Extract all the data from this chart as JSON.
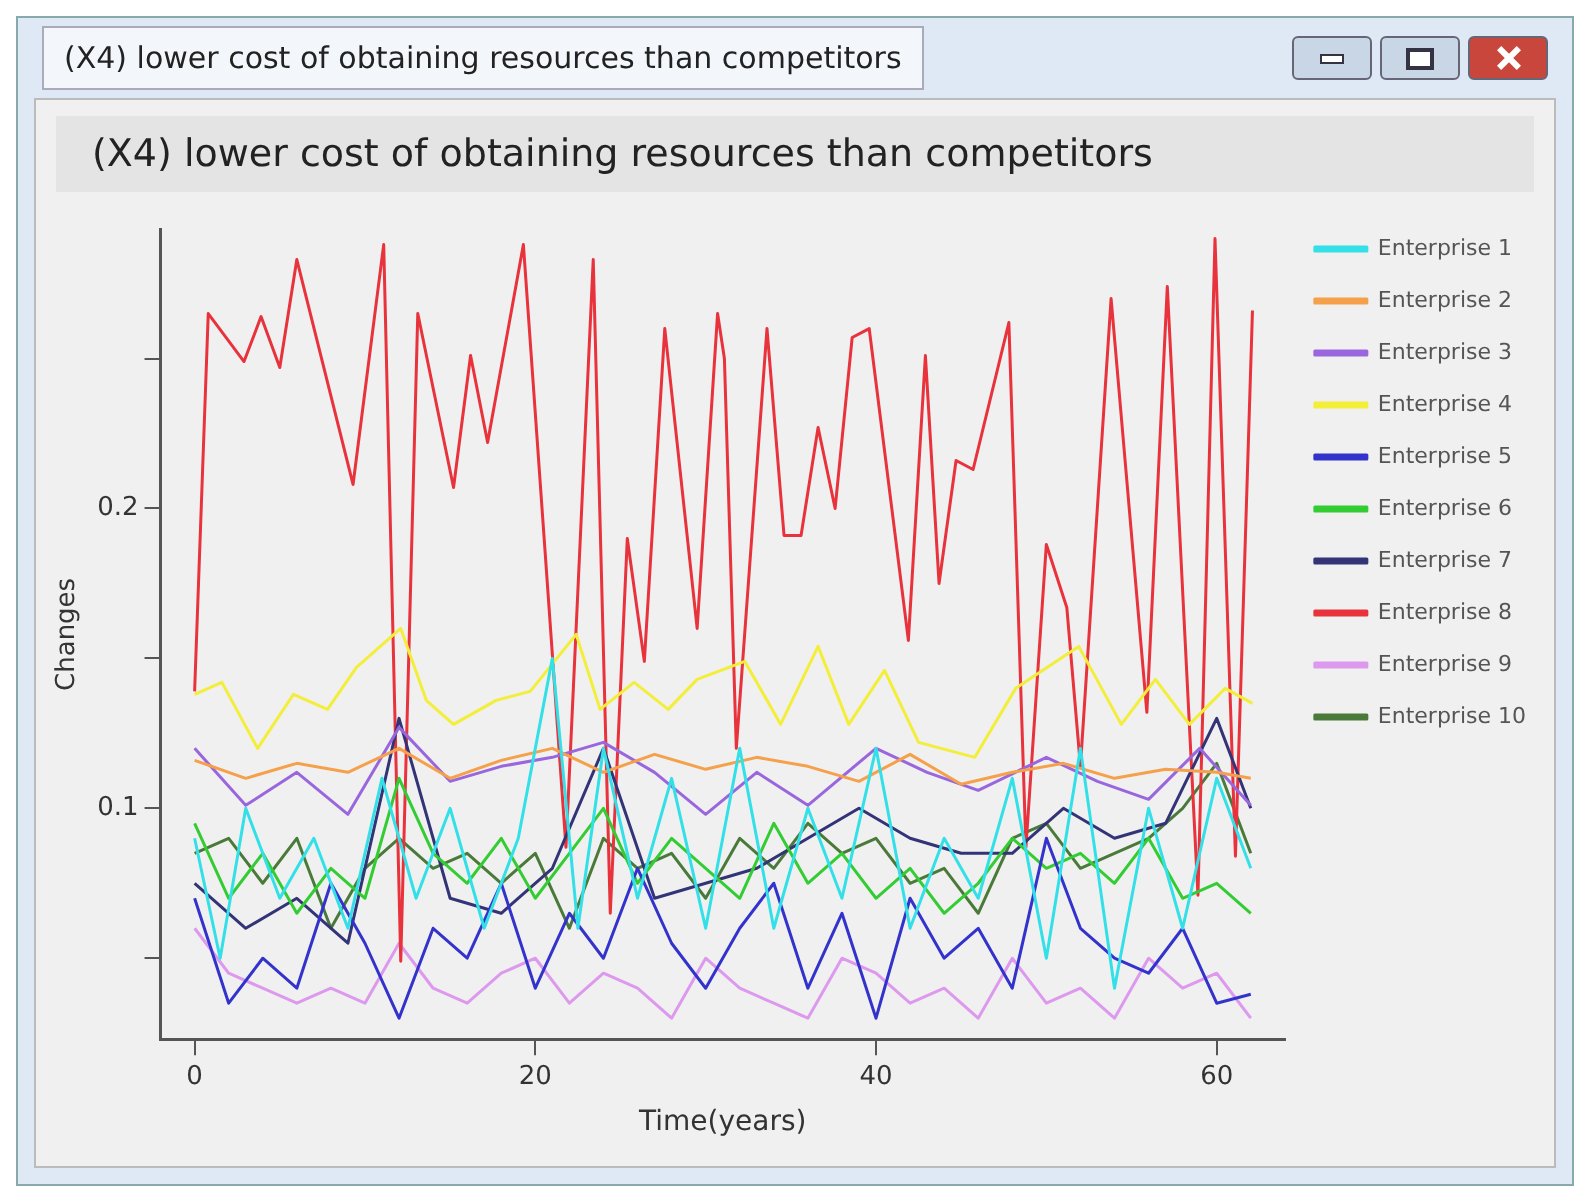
{
  "chart_data": {
    "type": "line",
    "title": "(X4) lower cost of obtaining resources than competitors",
    "subtitle": "(X4) lower cost of obtaining resources than competitors",
    "xlabel": "Time(years)",
    "ylabel": "Changes",
    "xlim": [
      -2,
      64
    ],
    "xticks": [
      0,
      20,
      40,
      60
    ],
    "ylim": [
      0.023,
      0.293
    ],
    "yticks": [
      {
        "value": 0.05,
        "label": null
      },
      0.1,
      {
        "value": 0.15,
        "label": null
      },
      0.2,
      {
        "value": 0.25,
        "label": null
      }
    ],
    "grid": false,
    "legend": "right",
    "marker": "none",
    "line_style": "solid",
    "series": [
      {
        "name": "Enterprise 1",
        "color": "#33e0e8",
        "x": [
          0,
          1.5,
          3,
          5,
          7,
          9,
          11,
          13,
          15,
          17,
          19,
          21,
          22.5,
          24,
          26,
          28,
          30,
          32,
          34,
          36,
          38,
          40,
          42,
          44,
          46,
          48,
          50,
          52,
          54,
          56,
          58,
          60,
          62
        ],
        "values": [
          0.09,
          0.05,
          0.1,
          0.07,
          0.09,
          0.06,
          0.11,
          0.07,
          0.1,
          0.06,
          0.09,
          0.15,
          0.06,
          0.12,
          0.07,
          0.11,
          0.06,
          0.12,
          0.06,
          0.1,
          0.07,
          0.12,
          0.06,
          0.09,
          0.07,
          0.11,
          0.05,
          0.12,
          0.04,
          0.1,
          0.06,
          0.11,
          0.08
        ]
      },
      {
        "name": "Enterprise 2",
        "color": "#f5a04a",
        "x": [
          0,
          3,
          6,
          9,
          12,
          15,
          18,
          21,
          24,
          27,
          30,
          33,
          36,
          39,
          42,
          45,
          48,
          51,
          54,
          57,
          60,
          62
        ],
        "values": [
          0.116,
          0.11,
          0.115,
          0.112,
          0.12,
          0.11,
          0.116,
          0.12,
          0.112,
          0.118,
          0.113,
          0.117,
          0.114,
          0.109,
          0.118,
          0.108,
          0.112,
          0.115,
          0.11,
          0.113,
          0.112,
          0.11
        ]
      },
      {
        "name": "Enterprise 3",
        "color": "#9966dd",
        "x": [
          0,
          3,
          6,
          9,
          12,
          15,
          18,
          21,
          24,
          27,
          30,
          33,
          36,
          40,
          43,
          46,
          50,
          53,
          56,
          59,
          62
        ],
        "values": [
          0.12,
          0.101,
          0.112,
          0.098,
          0.127,
          0.109,
          0.114,
          0.117,
          0.122,
          0.112,
          0.098,
          0.112,
          0.101,
          0.12,
          0.112,
          0.106,
          0.117,
          0.109,
          0.103,
          0.12,
          0.101
        ]
      },
      {
        "name": "Enterprise 4",
        "color": "#f2ee3a",
        "x": [
          0,
          1.6,
          3.7,
          5.8,
          7.8,
          9.5,
          12.1,
          13.6,
          15.2,
          17.7,
          19.7,
          22.4,
          23.8,
          25.8,
          27.8,
          29.5,
          32.3,
          34.4,
          36.6,
          38.4,
          40.5,
          42.5,
          45.8,
          48.2,
          51.9,
          54.4,
          56.4,
          58.4,
          60.5,
          62.1
        ],
        "values": [
          0.138,
          0.142,
          0.12,
          0.138,
          0.133,
          0.147,
          0.16,
          0.136,
          0.128,
          0.136,
          0.139,
          0.158,
          0.133,
          0.142,
          0.133,
          0.143,
          0.149,
          0.128,
          0.154,
          0.128,
          0.146,
          0.122,
          0.117,
          0.14,
          0.154,
          0.128,
          0.143,
          0.128,
          0.14,
          0.135
        ]
      },
      {
        "name": "Enterprise 5",
        "color": "#3333cc",
        "x": [
          0,
          2,
          4,
          6,
          8,
          10,
          12,
          14,
          16,
          18,
          20,
          22,
          24,
          26,
          28,
          30,
          32,
          34,
          36,
          38,
          40,
          42,
          44,
          46,
          48,
          50,
          52,
          54,
          56,
          58,
          60,
          62
        ],
        "values": [
          0.07,
          0.035,
          0.05,
          0.04,
          0.075,
          0.055,
          0.03,
          0.06,
          0.05,
          0.075,
          0.04,
          0.065,
          0.05,
          0.08,
          0.055,
          0.04,
          0.06,
          0.075,
          0.04,
          0.065,
          0.03,
          0.07,
          0.05,
          0.06,
          0.04,
          0.09,
          0.06,
          0.05,
          0.045,
          0.06,
          0.035,
          0.038
        ]
      },
      {
        "name": "Enterprise 6",
        "color": "#33cc33",
        "x": [
          0,
          2,
          4,
          6,
          8,
          10,
          12,
          14,
          16,
          18,
          20,
          22,
          24,
          26,
          28,
          30,
          32,
          34,
          36,
          38,
          40,
          42,
          44,
          46,
          48,
          50,
          52,
          54,
          56,
          58,
          60,
          62
        ],
        "values": [
          0.095,
          0.07,
          0.085,
          0.065,
          0.08,
          0.07,
          0.11,
          0.085,
          0.075,
          0.09,
          0.07,
          0.085,
          0.1,
          0.075,
          0.09,
          0.08,
          0.07,
          0.095,
          0.075,
          0.085,
          0.07,
          0.08,
          0.065,
          0.075,
          0.09,
          0.08,
          0.085,
          0.075,
          0.09,
          0.07,
          0.075,
          0.065
        ]
      },
      {
        "name": "Enterprise 7",
        "color": "#333377",
        "x": [
          0,
          3,
          6,
          9,
          12,
          15,
          18,
          21,
          24,
          27,
          30,
          33,
          36,
          39,
          42,
          45,
          48,
          51,
          54,
          57,
          60,
          62
        ],
        "values": [
          0.075,
          0.06,
          0.07,
          0.055,
          0.13,
          0.07,
          0.065,
          0.08,
          0.12,
          0.07,
          0.075,
          0.08,
          0.09,
          0.1,
          0.09,
          0.085,
          0.085,
          0.1,
          0.09,
          0.095,
          0.13,
          0.1
        ]
      },
      {
        "name": "Enterprise 8",
        "color": "#e8323c",
        "x": [
          0,
          0.8,
          2.9,
          3.9,
          5,
          6,
          9.3,
          11.1,
          12.1,
          13.1,
          15.2,
          16.2,
          17.2,
          19.3,
          21.8,
          23.4,
          24.4,
          25.4,
          26.4,
          27.6,
          29.5,
          30.7,
          31.1,
          31.8,
          33.6,
          34.6,
          35.6,
          36.6,
          37.6,
          38.6,
          39.6,
          41.9,
          42.9,
          43.7,
          44.7,
          45.7,
          47.8,
          48.8,
          50,
          51.2,
          52,
          53.8,
          55.9,
          57.1,
          58.9,
          59.9,
          61.1,
          62.1
        ],
        "values": [
          0.139,
          0.265,
          0.249,
          0.264,
          0.247,
          0.283,
          0.208,
          0.288,
          0.049,
          0.265,
          0.207,
          0.251,
          0.222,
          0.288,
          0.087,
          0.283,
          0.065,
          0.19,
          0.149,
          0.26,
          0.16,
          0.265,
          0.25,
          0.12,
          0.26,
          0.191,
          0.191,
          0.227,
          0.2,
          0.257,
          0.26,
          0.156,
          0.251,
          0.175,
          0.216,
          0.213,
          0.262,
          0.087,
          0.188,
          0.167,
          0.114,
          0.27,
          0.132,
          0.274,
          0.071,
          0.29,
          0.084,
          0.266
        ]
      },
      {
        "name": "Enterprise 9",
        "color": "#dd99ee",
        "x": [
          0,
          2,
          4,
          6,
          8,
          10,
          12,
          14,
          16,
          18,
          20,
          22,
          24,
          26,
          28,
          30,
          32,
          34,
          36,
          38,
          40,
          42,
          44,
          46,
          48,
          50,
          52,
          54,
          56,
          58,
          60,
          62
        ],
        "values": [
          0.06,
          0.045,
          0.04,
          0.035,
          0.04,
          0.035,
          0.055,
          0.04,
          0.035,
          0.045,
          0.05,
          0.035,
          0.045,
          0.04,
          0.03,
          0.05,
          0.04,
          0.035,
          0.03,
          0.05,
          0.045,
          0.035,
          0.04,
          0.03,
          0.05,
          0.035,
          0.04,
          0.03,
          0.05,
          0.04,
          0.045,
          0.03
        ]
      },
      {
        "name": "Enterprise 10",
        "color": "#4a7a3a",
        "x": [
          0,
          2,
          4,
          6,
          8,
          10,
          12,
          14,
          16,
          18,
          20,
          22,
          24,
          26,
          28,
          30,
          32,
          34,
          36,
          38,
          40,
          42,
          44,
          46,
          48,
          50,
          52,
          54,
          56,
          58,
          60,
          62
        ],
        "values": [
          0.085,
          0.09,
          0.075,
          0.09,
          0.06,
          0.08,
          0.09,
          0.08,
          0.085,
          0.075,
          0.085,
          0.06,
          0.09,
          0.08,
          0.085,
          0.07,
          0.09,
          0.08,
          0.095,
          0.085,
          0.09,
          0.075,
          0.08,
          0.065,
          0.09,
          0.095,
          0.08,
          0.085,
          0.09,
          0.1,
          0.115,
          0.085
        ]
      }
    ]
  }
}
